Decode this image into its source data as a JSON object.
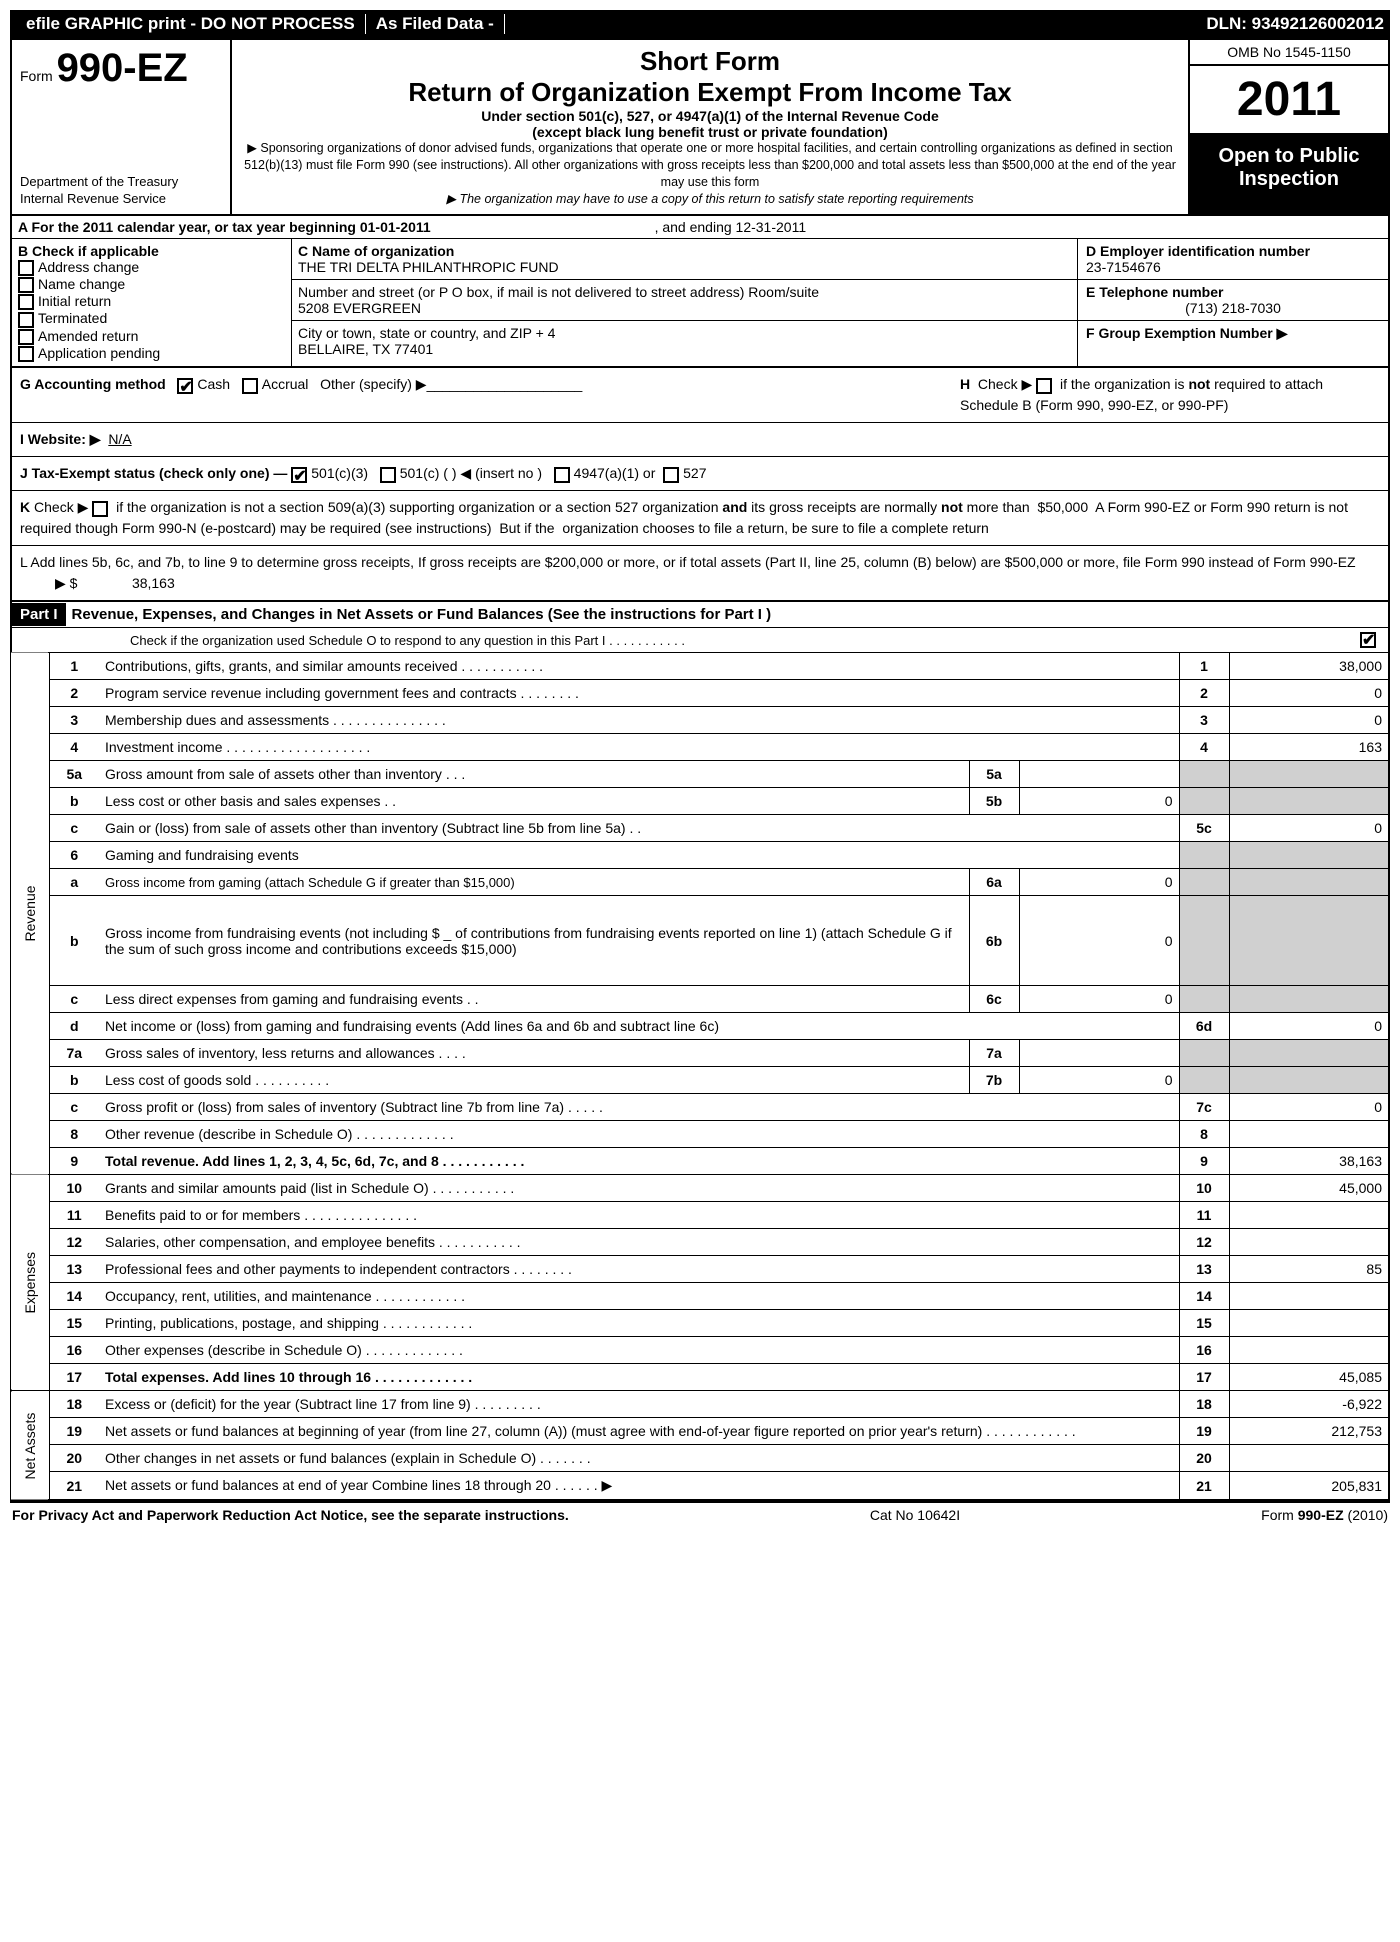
{
  "topbar": {
    "left": [
      "efile GRAPHIC print - DO NOT PROCESS",
      "As Filed Data -",
      ""
    ],
    "right": "DLN: 93492126002012"
  },
  "header": {
    "form_prefix": "Form",
    "form_no": "990-EZ",
    "dept1": "Department of the Treasury",
    "dept2": "Internal Revenue Service",
    "short": "Short Form",
    "title": "Return of Organization Exempt From Income Tax",
    "sub1": "Under section 501(c), 527, or 4947(a)(1) of the Internal Revenue Code",
    "sub2": "(except black lung benefit trust or private foundation)",
    "note1": "▶ Sponsoring organizations of donor advised funds, organizations that operate one or more hospital facilities, and certain controlling organizations as defined in section 512(b)(13) must file Form 990 (see instructions). All other organizations with gross receipts less than $200,000 and total assets less than $500,000 at the end of the year may use this form",
    "note2": "▶ The organization may have to use a copy of this return to satisfy state reporting requirements",
    "omb": "OMB No  1545-1150",
    "year": "2011",
    "open1": "Open to Public",
    "open2": "Inspection"
  },
  "A": {
    "label": "A  For the 2011 calendar year, or tax year beginning 01-01-2011",
    "ending": ", and ending 12-31-2011"
  },
  "B": {
    "title": "B  Check if applicable",
    "items": [
      "Address change",
      "Name change",
      "Initial return",
      "Terminated",
      "Amended return",
      "Application pending"
    ]
  },
  "C": {
    "name_lbl": "C Name of organization",
    "name": "THE TRI DELTA PHILANTHROPIC FUND",
    "addr_lbl": "Number and street (or P  O  box, if mail is not delivered to street address)  Room/suite",
    "addr": "5208 EVERGREEN",
    "city_lbl": "City or town, state or country, and ZIP + 4",
    "city": "BELLAIRE, TX  77401"
  },
  "D": {
    "ein_lbl": "D Employer identification number",
    "ein": "23-7154676",
    "tel_lbl": "E Telephone number",
    "tel": "(713) 218-7030",
    "grp_lbl": "F Group Exemption Number   ▶"
  },
  "G": {
    "label": "G Accounting method",
    "cash": "Cash",
    "accrual": "Accrual",
    "other": "Other (specify) ▶"
  },
  "H": {
    "text": "Check ▶        if the organization is not required to attach Schedule B (Form 990, 990-EZ, or 990-PF)"
  },
  "I": {
    "label": "I Website: ▶",
    "val": "N/A"
  },
  "J": {
    "label": "J Tax-Exempt status (check only one) —",
    "a": "501(c)(3)",
    "b": "501(c) (   ) ◀ (insert no )",
    "c": "4947(a)(1) or",
    "d": "527"
  },
  "K": {
    "text": "K Check ▶      if the organization is not a section 509(a)(3) supporting organization or a section 527 organization and its gross receipts are normally not more than   $50,000   A Form 990-EZ or Form 990 return is not required though Form 990-N (e-postcard) may be required (see instructions)   But if the organization chooses to file a return, be sure to file a complete return"
  },
  "L": {
    "text": "L Add lines 5b, 6c, and 7b, to line 9 to determine gross receipts, If gross receipts are $200,000 or more, or if total assets (Part II, line 25, column (B) below) are $500,000 or more, file Form 990 instead of Form 990-EZ",
    "amount_lbl": "▶ $",
    "amount": "38,163"
  },
  "part1": {
    "label": "Part I",
    "title": "Revenue, Expenses, and Changes in Net Assets or Fund Balances (See the instructions for Part I )",
    "check": "Check if the organization used Schedule O to respond to any question in this Part I  .   .   .   .   .   .   .   .   .   .   ."
  },
  "sidelabels": {
    "rev": "Revenue",
    "exp": "Expenses",
    "net": "Net Assets"
  },
  "lines": [
    {
      "no": "1",
      "desc": "Contributions, gifts, grants, and similar amounts received     .    .    .    .    .    .    .    .    .    .    .",
      "r": "1",
      "rv": "38,000"
    },
    {
      "no": "2",
      "desc": "Program service revenue including government fees and contracts    .    .    .    .    .    .    .    .",
      "r": "2",
      "rv": "0"
    },
    {
      "no": "3",
      "desc": "Membership dues and assessments     .    .    .    .    .    .    .    .    .    .    .    .    .    .    .",
      "r": "3",
      "rv": "0"
    },
    {
      "no": "4",
      "desc": "Investment income     .    .    .    .    .    .    .    .    .    .    .    .    .    .    .    .    .    .    .",
      "r": "4",
      "rv": "163"
    },
    {
      "no": "5a",
      "desc": "Gross amount from sale of assets other than inventory    .    .    .",
      "m": "5a",
      "mv": "",
      "shade": true
    },
    {
      "no": "b",
      "desc": "Less  cost or other basis and sales expenses    .    .",
      "m": "5b",
      "mv": "0",
      "shade": true
    },
    {
      "no": "c",
      "desc": "Gain or (loss) from sale of assets other than inventory (Subtract line 5b from line 5a)    .    .",
      "r": "5c",
      "rv": "0"
    },
    {
      "no": "6",
      "desc": "Gaming and fundraising events",
      "shade": true
    },
    {
      "no": "a",
      "desc": "Gross income from gaming (attach Schedule G if greater than $15,000)",
      "m": "6a",
      "mv": "0",
      "shade": true,
      "small": true
    },
    {
      "no": "b",
      "desc": "Gross income from fundraising events (not including $ _ of contributions from fundraising events reported on line 1) (attach Schedule G if the sum of such gross income and contributions exceeds $15,000)",
      "m": "6b",
      "mv": "0",
      "shade": true,
      "tall": true
    },
    {
      "no": "c",
      "desc": "Less  direct expenses from gaming and fundraising events    .    .",
      "m": "6c",
      "mv": "0",
      "shade": true
    },
    {
      "no": "d",
      "desc": "Net income or (loss) from gaming and fundraising events (Add lines 6a and 6b and subtract line 6c)",
      "r": "6d",
      "rv": "0"
    },
    {
      "no": "7a",
      "desc": "Gross sales of inventory, less returns and allowances    .    .    .    .",
      "m": "7a",
      "mv": "",
      "shade": true
    },
    {
      "no": "b",
      "desc": "Less  cost of goods sold     .    .    .    .    .    .    .    .    .    .",
      "m": "7b",
      "mv": "0",
      "shade": true
    },
    {
      "no": "c",
      "desc": "Gross profit or (loss) from sales of inventory (Subtract line 7b from line 7a)    .    .    .    .    .",
      "r": "7c",
      "rv": "0"
    },
    {
      "no": "8",
      "desc": "Other revenue (describe in Schedule O)    .    .    .    .    .    .    .    .    .    .    .    .    .",
      "r": "8",
      "rv": ""
    },
    {
      "no": "9",
      "desc": "Total revenue. Add lines 1, 2, 3, 4, 5c, 6d, 7c, and 8    .    .    .    .    .    .    .    .    .    .    .",
      "r": "9",
      "rv": "38,163",
      "bold": true
    }
  ],
  "exp_lines": [
    {
      "no": "10",
      "desc": "Grants and similar amounts paid (list in Schedule O)    .    .    .    .    .    .    .    .    .    .    .",
      "r": "10",
      "rv": "45,000"
    },
    {
      "no": "11",
      "desc": "Benefits paid to or for members    .    .    .    .    .    .    .    .    .    .    .    .    .    .    .",
      "r": "11",
      "rv": ""
    },
    {
      "no": "12",
      "desc": "Salaries, other compensation, and employee benefits    .    .    .    .    .    .    .    .    .    .    .",
      "r": "12",
      "rv": ""
    },
    {
      "no": "13",
      "desc": "Professional fees and other payments to independent contractors    .    .    .    .    .    .    .    .",
      "r": "13",
      "rv": "85"
    },
    {
      "no": "14",
      "desc": "Occupancy, rent, utilities, and maintenance    .    .    .    .    .    .    .    .    .    .    .    .",
      "r": "14",
      "rv": ""
    },
    {
      "no": "15",
      "desc": "Printing, publications, postage, and shipping    .    .    .    .    .    .    .    .    .    .    .    .",
      "r": "15",
      "rv": ""
    },
    {
      "no": "16",
      "desc": "Other expenses (describe in Schedule O)    .    .    .    .    .    .    .    .    .    .    .    .    .",
      "r": "16",
      "rv": ""
    },
    {
      "no": "17",
      "desc": "Total expenses. Add lines 10 through 16    .    .    .    .    .    .    .    .    .    .    .    .    .",
      "r": "17",
      "rv": "45,085",
      "bold": true
    }
  ],
  "net_lines": [
    {
      "no": "18",
      "desc": "Excess or (deficit) for the year (Subtract line 17 from line 9)    .    .    .    .    .    .    .    .    .",
      "r": "18",
      "rv": "-6,922"
    },
    {
      "no": "19",
      "desc": "Net assets or fund balances at beginning of year (from line 27, column (A)) (must agree with end-of-year figure reported on prior year's return)    .    .    .    .    .    .    .    .    .    .    .    .",
      "r": "19",
      "rv": "212,753"
    },
    {
      "no": "20",
      "desc": "Other changes in net assets or fund balances (explain in Schedule O)    .    .    .    .    .    .    .",
      "r": "20",
      "rv": ""
    },
    {
      "no": "21",
      "desc": "Net assets or fund balances at end of year  Combine lines 18 through 20    .    .    .    .    .    . ▶",
      "r": "21",
      "rv": "205,831"
    }
  ],
  "footer": {
    "left": "For Privacy Act and Paperwork Reduction Act Notice, see the separate instructions.",
    "mid": "Cat  No  10642I",
    "right": "Form 990-EZ (2010)"
  }
}
